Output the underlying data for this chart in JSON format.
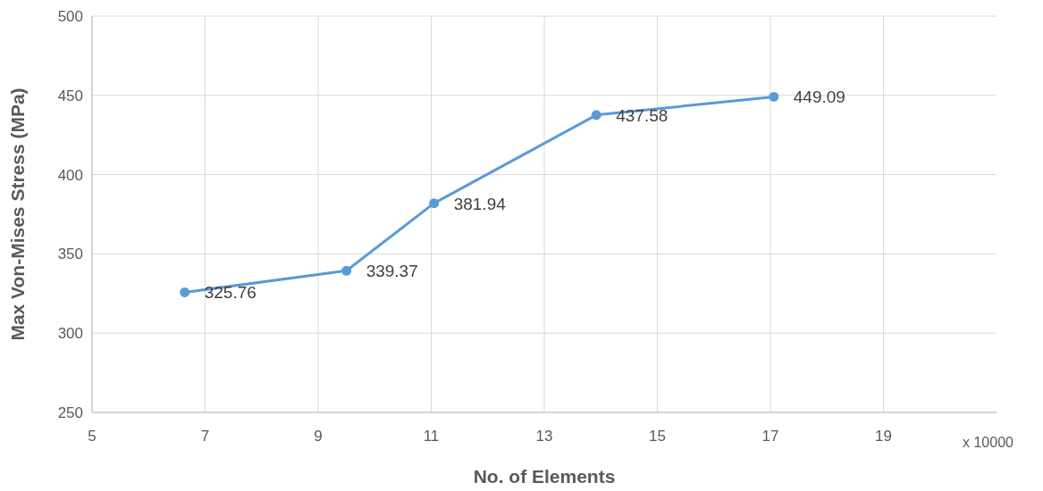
{
  "chart_data": {
    "type": "line",
    "xlabel": "No. of Elements",
    "ylabel": "Max Von-Mises Stress (MPa)",
    "annotations": [
      "x 10000"
    ],
    "x": [
      6.64,
      9.5,
      11.05,
      13.92,
      17.06
    ],
    "series": [
      {
        "color": "#5b9bd5",
        "values": [
          325.76,
          339.37,
          381.94,
          437.58,
          449.09
        ]
      }
    ],
    "xlim": [
      5,
      21
    ],
    "xticks": [
      5,
      7,
      9,
      11,
      13,
      15,
      17,
      19
    ],
    "ylim": [
      250,
      500
    ],
    "yticks": [
      250,
      300,
      350,
      400,
      450,
      500
    ],
    "grid": true,
    "marker": "circle",
    "data_labels": true
  }
}
